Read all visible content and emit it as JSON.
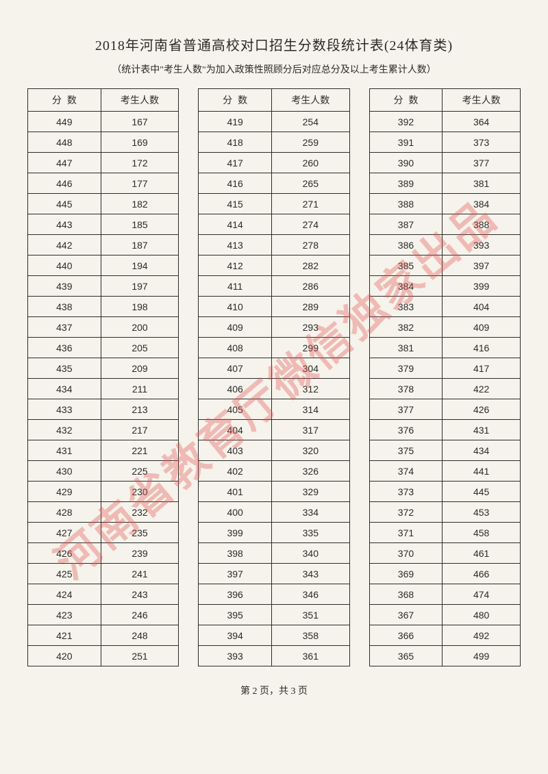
{
  "title": "2018年河南省普通高校对口招生分数段统计表(24体育类)",
  "subtitle": "（统计表中\"考生人数\"为加入政策性照顾分后对应总分及以上考生累计人数）",
  "watermark": "河南省教育厅微信独家出品",
  "footer": "第 2 页，共 3 页",
  "headers": {
    "score": "分数",
    "count": "考生人数"
  },
  "table1": {
    "rows": [
      {
        "score": "449",
        "count": "167"
      },
      {
        "score": "448",
        "count": "169"
      },
      {
        "score": "447",
        "count": "172"
      },
      {
        "score": "446",
        "count": "177"
      },
      {
        "score": "445",
        "count": "182"
      },
      {
        "score": "443",
        "count": "185"
      },
      {
        "score": "442",
        "count": "187"
      },
      {
        "score": "440",
        "count": "194"
      },
      {
        "score": "439",
        "count": "197"
      },
      {
        "score": "438",
        "count": "198"
      },
      {
        "score": "437",
        "count": "200"
      },
      {
        "score": "436",
        "count": "205"
      },
      {
        "score": "435",
        "count": "209"
      },
      {
        "score": "434",
        "count": "211"
      },
      {
        "score": "433",
        "count": "213"
      },
      {
        "score": "432",
        "count": "217"
      },
      {
        "score": "431",
        "count": "221"
      },
      {
        "score": "430",
        "count": "225"
      },
      {
        "score": "429",
        "count": "230"
      },
      {
        "score": "428",
        "count": "232"
      },
      {
        "score": "427",
        "count": "235"
      },
      {
        "score": "426",
        "count": "239"
      },
      {
        "score": "425",
        "count": "241"
      },
      {
        "score": "424",
        "count": "243"
      },
      {
        "score": "423",
        "count": "246"
      },
      {
        "score": "421",
        "count": "248"
      },
      {
        "score": "420",
        "count": "251"
      }
    ]
  },
  "table2": {
    "rows": [
      {
        "score": "419",
        "count": "254"
      },
      {
        "score": "418",
        "count": "259"
      },
      {
        "score": "417",
        "count": "260"
      },
      {
        "score": "416",
        "count": "265"
      },
      {
        "score": "415",
        "count": "271"
      },
      {
        "score": "414",
        "count": "274"
      },
      {
        "score": "413",
        "count": "278"
      },
      {
        "score": "412",
        "count": "282"
      },
      {
        "score": "411",
        "count": "286"
      },
      {
        "score": "410",
        "count": "289"
      },
      {
        "score": "409",
        "count": "293"
      },
      {
        "score": "408",
        "count": "299"
      },
      {
        "score": "407",
        "count": "304"
      },
      {
        "score": "406",
        "count": "312"
      },
      {
        "score": "405",
        "count": "314"
      },
      {
        "score": "404",
        "count": "317"
      },
      {
        "score": "403",
        "count": "320"
      },
      {
        "score": "402",
        "count": "326"
      },
      {
        "score": "401",
        "count": "329"
      },
      {
        "score": "400",
        "count": "334"
      },
      {
        "score": "399",
        "count": "335"
      },
      {
        "score": "398",
        "count": "340"
      },
      {
        "score": "397",
        "count": "343"
      },
      {
        "score": "396",
        "count": "346"
      },
      {
        "score": "395",
        "count": "351"
      },
      {
        "score": "394",
        "count": "358"
      },
      {
        "score": "393",
        "count": "361"
      }
    ]
  },
  "table3": {
    "rows": [
      {
        "score": "392",
        "count": "364"
      },
      {
        "score": "391",
        "count": "373"
      },
      {
        "score": "390",
        "count": "377"
      },
      {
        "score": "389",
        "count": "381"
      },
      {
        "score": "388",
        "count": "384"
      },
      {
        "score": "387",
        "count": "388"
      },
      {
        "score": "386",
        "count": "393"
      },
      {
        "score": "385",
        "count": "397"
      },
      {
        "score": "384",
        "count": "399"
      },
      {
        "score": "383",
        "count": "404"
      },
      {
        "score": "382",
        "count": "409"
      },
      {
        "score": "381",
        "count": "416"
      },
      {
        "score": "379",
        "count": "417"
      },
      {
        "score": "378",
        "count": "422"
      },
      {
        "score": "377",
        "count": "426"
      },
      {
        "score": "376",
        "count": "431"
      },
      {
        "score": "375",
        "count": "434"
      },
      {
        "score": "374",
        "count": "441"
      },
      {
        "score": "373",
        "count": "445"
      },
      {
        "score": "372",
        "count": "453"
      },
      {
        "score": "371",
        "count": "458"
      },
      {
        "score": "370",
        "count": "461"
      },
      {
        "score": "369",
        "count": "466"
      },
      {
        "score": "368",
        "count": "474"
      },
      {
        "score": "367",
        "count": "480"
      },
      {
        "score": "366",
        "count": "492"
      },
      {
        "score": "365",
        "count": "499"
      }
    ]
  }
}
